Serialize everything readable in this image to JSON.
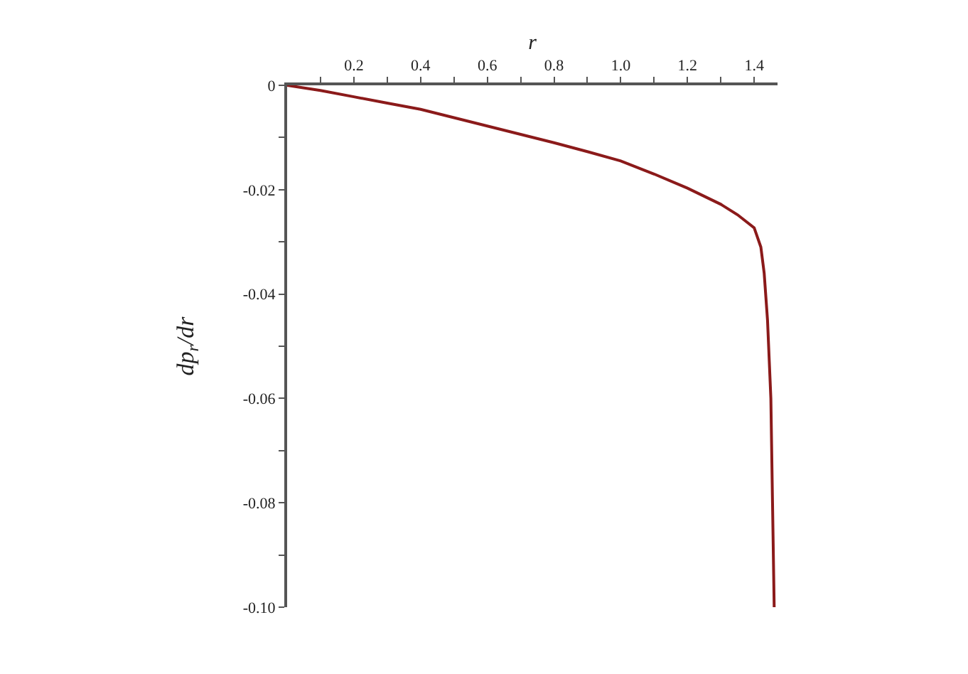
{
  "chart_data": {
    "type": "line",
    "xlabel": "r",
    "ylabel": "dp$_{r}$/dr",
    "x": [
      0,
      0.1,
      0.2,
      0.3,
      0.4,
      0.5,
      0.6,
      0.7,
      0.8,
      0.9,
      1.0,
      1.1,
      1.2,
      1.3,
      1.35,
      1.4,
      1.42,
      1.43,
      1.44,
      1.45,
      1.455,
      1.46
    ],
    "series": [
      {
        "color": "#8b1a1a",
        "values": [
          0,
          -0.001,
          -0.0022,
          -0.0034,
          -0.0046,
          -0.0062,
          -0.0078,
          -0.0094,
          -0.011,
          -0.0127,
          -0.0145,
          -0.017,
          -0.0197,
          -0.0228,
          -0.0248,
          -0.0273,
          -0.031,
          -0.036,
          -0.045,
          -0.06,
          -0.08,
          -0.1
        ]
      }
    ],
    "xlim": [
      0,
      1.47
    ],
    "ylim": [
      -0.1,
      0
    ],
    "xticks": [
      {
        "value": 0.1,
        "label": null
      },
      0.2,
      {
        "value": 0.3,
        "label": null
      },
      0.4,
      {
        "value": 0.5,
        "label": null
      },
      0.6,
      {
        "value": 0.7,
        "label": null
      },
      0.8,
      {
        "value": 0.9,
        "label": null
      },
      {
        "value": 1.0,
        "label": "1.0"
      },
      {
        "value": 1.1,
        "label": null
      },
      1.2,
      {
        "value": 1.3,
        "label": null
      },
      1.4
    ],
    "yticks": [
      0,
      {
        "value": -0.01,
        "label": null
      },
      -0.02,
      {
        "value": -0.03,
        "label": null
      },
      -0.04,
      {
        "value": -0.05,
        "label": null
      },
      -0.06,
      {
        "value": -0.07,
        "label": null
      },
      -0.08,
      {
        "value": -0.09,
        "label": null
      },
      {
        "value": -0.1,
        "label": "-0.10"
      }
    ],
    "marker": "none",
    "line_style": "solid"
  }
}
